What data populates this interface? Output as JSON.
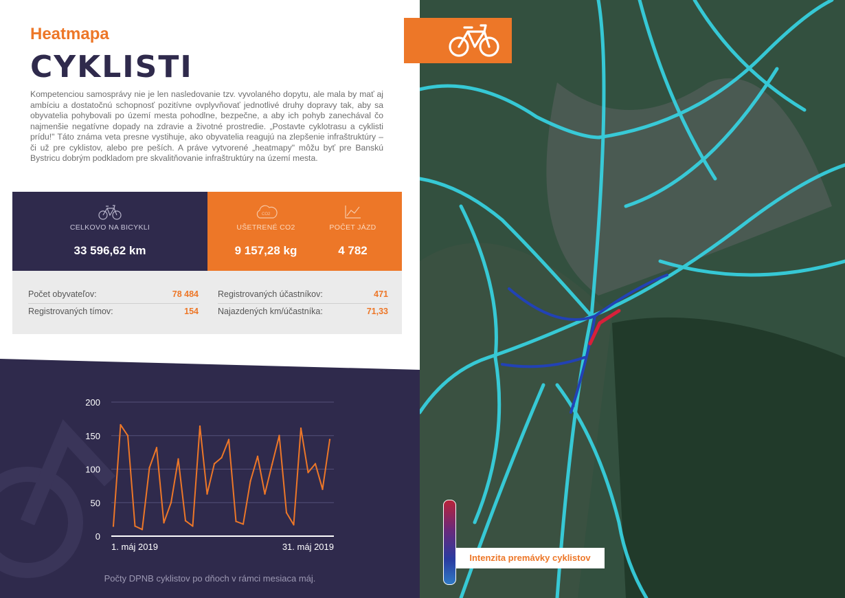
{
  "header": {
    "subtitle": "Heatmapa",
    "title": "CYKLISTI"
  },
  "intro_text": "Kompetenciou samosprávy nie je len nasledovanie tzv. vyvolaného dopytu, ale mala by mať aj ambíciu a dostatočnú schopnosť pozitívne ovplyvňovať jednotlivé druhy dopravy tak, aby sa obyvatelia pohybovali po území mesta pohodlne, bezpečne, a aby ich pohyb zanechával čo najmenšie negatívne dopady na zdravie a životné prostredie. „Postavte cyklotrasu a cyklisti prídu!\" Táto známa veta presne vystihuje, ako obyvatelia reagujú na zlepšenie infraštruktúry – či už pre cyklistov, alebo pre peších. A práve vytvorené „heatmapy\" môžu byť pre Banskú Bystricu dobrým podkladom pre skvalitňovanie infraštruktúry na území mesta.",
  "stats": {
    "total": {
      "label": "CELKOVO NA BICYKLI",
      "value": "33 596,62 km",
      "icon": "bicycle-icon"
    },
    "co2": {
      "label": "UŠETRENÉ CO2",
      "value": "9 157,28 kg",
      "icon": "co2-cloud-icon"
    },
    "trips": {
      "label": "POČET JÁZD",
      "value": "4 782",
      "icon": "line-chart-icon"
    }
  },
  "table": {
    "left": [
      {
        "key": "Počet obyvateľov:",
        "value": "78 484"
      },
      {
        "key": "Registrovaných tímov:",
        "value": "154"
      }
    ],
    "right": [
      {
        "key": "Registrovaných účastníkov:",
        "value": "471"
      },
      {
        "key": "Najazdených km/účastníka:",
        "value": "71,33"
      }
    ]
  },
  "chart_data": {
    "type": "line",
    "x": [
      1,
      2,
      3,
      4,
      5,
      6,
      7,
      8,
      9,
      10,
      11,
      12,
      13,
      14,
      15,
      16,
      17,
      18,
      19,
      20,
      21,
      22,
      23,
      24,
      25,
      26,
      27,
      28,
      29,
      30,
      31
    ],
    "values": [
      15,
      166,
      150,
      15,
      10,
      102,
      132,
      20,
      50,
      115,
      23,
      15,
      164,
      63,
      108,
      117,
      144,
      22,
      18,
      82,
      119,
      63,
      107,
      150,
      35,
      17,
      161,
      95,
      108,
      70,
      144
    ],
    "ylim": [
      0,
      200
    ],
    "yticks": [
      "200",
      "150",
      "100",
      "50",
      "0"
    ],
    "x_start_label": "1. máj 2019",
    "x_end_label": "31. máj 2019",
    "title": "",
    "line_color": "#ed7728",
    "caption": "Počty DPNB cyklistov po dňoch v rámci mesiaca máj."
  },
  "map": {
    "legend_label": "Intenzita premávky cyklistov",
    "badge_icon": "bicycle-icon"
  },
  "colors": {
    "accent": "#ed7728",
    "dark": "#2f2a4c"
  }
}
